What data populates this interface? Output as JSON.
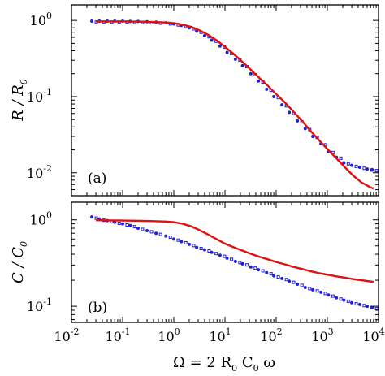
{
  "colors": {
    "data_points": "#1f1fd6",
    "model_curve": "#e01010",
    "axes": "#000000"
  },
  "chart_data": [
    {
      "panel": "a",
      "type": "scatter",
      "panel_label": "(a)",
      "ylabel": "R / R0",
      "ylabel_parts": {
        "main": "R / R",
        "sub": "0"
      },
      "xscale": "log",
      "yscale": "log",
      "xlim": [
        0.01,
        10000
      ],
      "ylim": [
        0.005,
        1.6
      ],
      "x_ticks": [],
      "y_ticks": [
        {
          "value": 1,
          "base": "10",
          "exp": "0"
        },
        {
          "value": 0.1,
          "base": "10",
          "exp": "-1"
        },
        {
          "value": 0.01,
          "base": "10",
          "exp": "-2"
        }
      ],
      "grid": false,
      "series": [
        {
          "kind": "points",
          "x": [
            0.025,
            0.035,
            0.05,
            0.07,
            0.1,
            0.14,
            0.2,
            0.3,
            0.45,
            0.7,
            1.0,
            1.4,
            2.0,
            2.8,
            4,
            5.5,
            8,
            11,
            16,
            22,
            32,
            45,
            65,
            90,
            130,
            180,
            260,
            370,
            520,
            750,
            1050,
            1500,
            2100,
            3000,
            4300,
            6000,
            7500
          ],
          "y": [
            0.98,
            0.98,
            0.98,
            0.98,
            0.98,
            0.97,
            0.97,
            0.96,
            0.95,
            0.93,
            0.9,
            0.86,
            0.8,
            0.72,
            0.63,
            0.55,
            0.46,
            0.38,
            0.31,
            0.255,
            0.2,
            0.16,
            0.125,
            0.1,
            0.078,
            0.062,
            0.048,
            0.038,
            0.03,
            0.024,
            0.019,
            0.016,
            0.0135,
            0.0125,
            0.0118,
            0.0112,
            0.011
          ]
        },
        {
          "kind": "line",
          "x": [
            0.03,
            0.1,
            0.3,
            0.7,
            1.0,
            1.5,
            2.2,
            3.2,
            4.6,
            6.8,
            10,
            15,
            22,
            32,
            46,
            68,
            100,
            150,
            220,
            320,
            460,
            680,
            1000,
            1500,
            2200,
            3200,
            4600,
            6800,
            8000
          ],
          "y": [
            0.97,
            0.97,
            0.96,
            0.94,
            0.92,
            0.88,
            0.82,
            0.74,
            0.65,
            0.55,
            0.45,
            0.36,
            0.285,
            0.225,
            0.178,
            0.14,
            0.108,
            0.083,
            0.063,
            0.048,
            0.036,
            0.027,
            0.0205,
            0.0155,
            0.0118,
            0.0092,
            0.0075,
            0.0065,
            0.0062
          ]
        }
      ]
    },
    {
      "panel": "b",
      "type": "scatter",
      "panel_label": "(b)",
      "ylabel": "C / C0",
      "ylabel_parts": {
        "main": "C / C",
        "sub": "0"
      },
      "xlabel": "Ω = 2 R0 C0 ω",
      "xlabel_parts": {
        "p1": "Ω = 2 R",
        "sub1": "0",
        "p2": " C",
        "sub2": "0",
        "p3": " ω"
      },
      "xscale": "log",
      "yscale": "log",
      "xlim": [
        0.01,
        10000
      ],
      "ylim": [
        0.065,
        1.6
      ],
      "x_ticks": [
        {
          "value": 0.01,
          "base": "10",
          "exp": "-2"
        },
        {
          "value": 0.1,
          "base": "10",
          "exp": "-1"
        },
        {
          "value": 1,
          "base": "10",
          "exp": "0"
        },
        {
          "value": 10,
          "base": "10",
          "exp": "1"
        },
        {
          "value": 100,
          "base": "10",
          "exp": "2"
        },
        {
          "value": 1000,
          "base": "10",
          "exp": "3"
        },
        {
          "value": 10000,
          "base": "10",
          "exp": "4"
        }
      ],
      "y_ticks": [
        {
          "value": 1,
          "base": "10",
          "exp": "0"
        },
        {
          "value": 0.1,
          "base": "10",
          "exp": "-1"
        }
      ],
      "grid": false,
      "series": [
        {
          "kind": "points",
          "x": [
            0.025,
            0.035,
            0.05,
            0.07,
            0.1,
            0.14,
            0.2,
            0.3,
            0.45,
            0.7,
            1.0,
            1.4,
            2.0,
            2.8,
            4,
            5.5,
            8,
            11,
            16,
            22,
            32,
            45,
            65,
            90,
            130,
            180,
            260,
            370,
            520,
            750,
            1050,
            1500,
            2100,
            3000,
            4300,
            6000,
            7500
          ],
          "y": [
            1.08,
            1.02,
            0.98,
            0.94,
            0.9,
            0.86,
            0.8,
            0.75,
            0.7,
            0.65,
            0.6,
            0.56,
            0.52,
            0.48,
            0.45,
            0.42,
            0.39,
            0.36,
            0.33,
            0.31,
            0.285,
            0.265,
            0.245,
            0.225,
            0.21,
            0.195,
            0.18,
            0.165,
            0.155,
            0.145,
            0.135,
            0.125,
            0.118,
            0.11,
            0.105,
            0.1,
            0.097
          ]
        },
        {
          "kind": "line",
          "x": [
            0.03,
            0.1,
            0.3,
            0.7,
            1.0,
            1.5,
            2.2,
            3.2,
            4.6,
            6.8,
            10,
            15,
            22,
            32,
            46,
            68,
            100,
            150,
            220,
            320,
            460,
            680,
            1000,
            1500,
            2200,
            3200,
            4600,
            6800,
            8000
          ],
          "y": [
            0.99,
            0.98,
            0.97,
            0.955,
            0.94,
            0.9,
            0.84,
            0.76,
            0.68,
            0.6,
            0.53,
            0.48,
            0.44,
            0.405,
            0.375,
            0.35,
            0.325,
            0.305,
            0.285,
            0.27,
            0.255,
            0.242,
            0.232,
            0.222,
            0.214,
            0.206,
            0.2,
            0.194,
            0.191
          ]
        }
      ]
    }
  ]
}
